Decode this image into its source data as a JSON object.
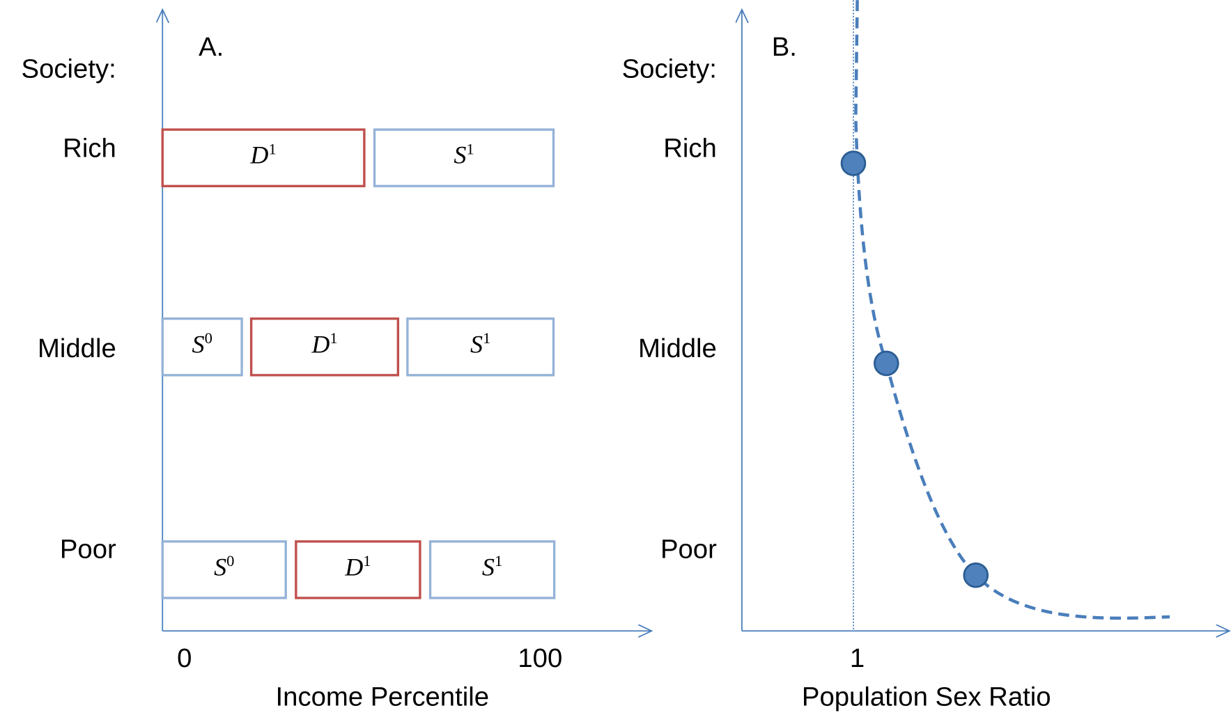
{
  "panel_a": {
    "label": "A.",
    "row_header": "Society:",
    "rows": [
      {
        "name": "Rich",
        "boxes": [
          {
            "letter": "D",
            "sup": "1"
          },
          {
            "letter": "S",
            "sup": "1"
          }
        ]
      },
      {
        "name": "Middle",
        "boxes": [
          {
            "letter": "S",
            "sup": "0"
          },
          {
            "letter": "D",
            "sup": "1"
          },
          {
            "letter": "S",
            "sup": "1"
          }
        ]
      },
      {
        "name": "Poor",
        "boxes": [
          {
            "letter": "S",
            "sup": "0"
          },
          {
            "letter": "D",
            "sup": "1"
          },
          {
            "letter": "S",
            "sup": "1"
          }
        ]
      }
    ],
    "x_ticks": [
      "0",
      "100"
    ],
    "x_label": "Income Percentile"
  },
  "panel_b": {
    "label": "B.",
    "row_header": "Society:",
    "rows": [
      "Rich",
      "Middle",
      "Poor"
    ],
    "x_tick": "1",
    "x_label": "Population Sex Ratio"
  }
}
